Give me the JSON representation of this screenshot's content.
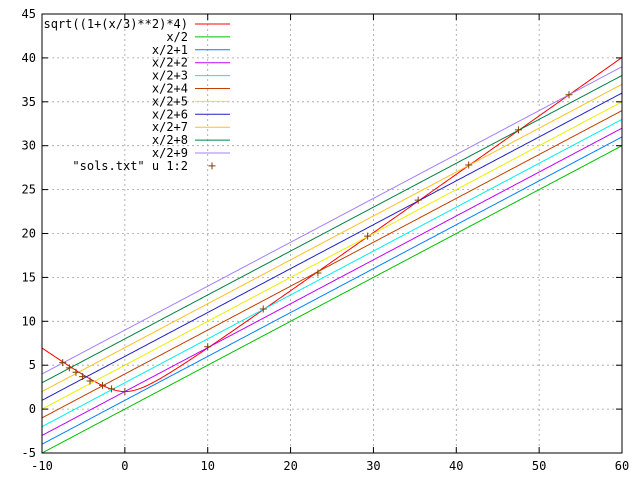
{
  "chart_data": {
    "type": "line",
    "title": "",
    "xlabel": "",
    "ylabel": "",
    "xlim": [
      -10,
      60
    ],
    "ylim": [
      -5,
      45
    ],
    "x_ticks": [
      -10,
      0,
      10,
      20,
      30,
      40,
      50,
      60
    ],
    "y_ticks": [
      -5,
      0,
      5,
      10,
      15,
      20,
      25,
      30,
      35,
      40,
      45
    ],
    "x_tick_labels": [
      "-10",
      "0",
      "10",
      "20",
      "30",
      "40",
      "50",
      "60"
    ],
    "y_tick_labels": [
      "-5",
      "0",
      "5",
      "10",
      "15",
      "20",
      "25",
      "30",
      "35",
      "40",
      "45"
    ],
    "grid": true,
    "legend_position": "top-left",
    "series": [
      {
        "name": "sqrt((1+(x/3)**2)*4)",
        "kind": "function",
        "expr": "sqrt",
        "color": "#ff0000"
      },
      {
        "name": "x/2",
        "kind": "function",
        "expr": "linear",
        "intercept": 0,
        "color": "#00c000"
      },
      {
        "name": "x/2+1",
        "kind": "function",
        "expr": "linear",
        "intercept": 1,
        "color": "#0080ff"
      },
      {
        "name": "x/2+2",
        "kind": "function",
        "expr": "linear",
        "intercept": 2,
        "color": "#c000ff"
      },
      {
        "name": "x/2+3",
        "kind": "function",
        "expr": "linear",
        "intercept": 3,
        "color": "#00eeee"
      },
      {
        "name": "x/2+4",
        "kind": "function",
        "expr": "linear",
        "intercept": 4,
        "color": "#c04000"
      },
      {
        "name": "x/2+5",
        "kind": "function",
        "expr": "linear",
        "intercept": 5,
        "color": "#eeee00"
      },
      {
        "name": "x/2+6",
        "kind": "function",
        "expr": "linear",
        "intercept": 6,
        "color": "#2020c0"
      },
      {
        "name": "x/2+7",
        "kind": "function",
        "expr": "linear",
        "intercept": 7,
        "color": "#ffc020"
      },
      {
        "name": "x/2+8",
        "kind": "function",
        "expr": "linear",
        "intercept": 8,
        "color": "#008040"
      },
      {
        "name": "x/2+9",
        "kind": "function",
        "expr": "linear",
        "intercept": 9,
        "color": "#a080ff"
      },
      {
        "name": "\"sols.txt\" u 1:2",
        "kind": "points",
        "color": "#804000",
        "x": [
          -7.5,
          -6.7,
          -5.9,
          -5.1,
          -4.2,
          -2.7,
          -1.6,
          0,
          10,
          16.7,
          23.3,
          29.3,
          35.4,
          41.5,
          47.5,
          53.6
        ],
        "y": [
          5.3,
          4.7,
          4.2,
          3.7,
          3.2,
          2.7,
          2.3,
          2.0,
          7.1,
          11.4,
          15.5,
          19.7,
          23.8,
          27.8,
          31.8,
          35.8
        ]
      }
    ]
  }
}
